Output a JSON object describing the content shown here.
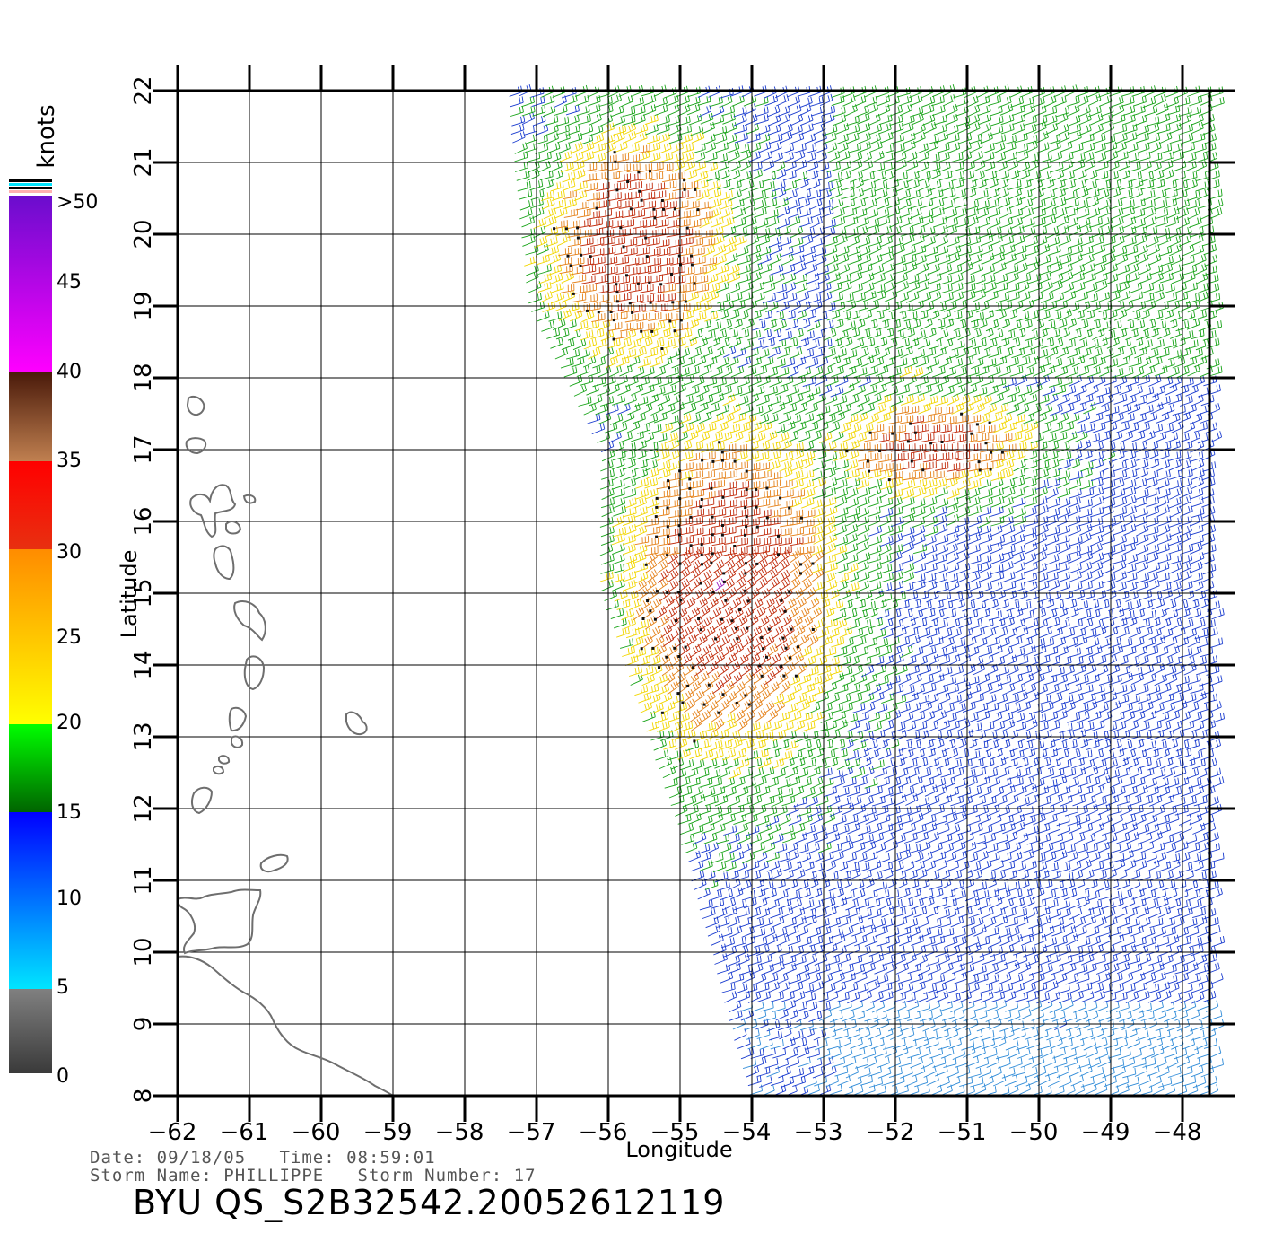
{
  "map": {
    "x_axis": {
      "label": "Longitude",
      "range": [
        -62,
        -47.6
      ],
      "ticks": [
        -62,
        -61,
        -60,
        -59,
        -58,
        -57,
        -56,
        -55,
        -54,
        -53,
        -52,
        -51,
        -50,
        -49,
        -48
      ],
      "tick_labels": [
        "−62",
        "−61",
        "−60",
        "−59",
        "−58",
        "−57",
        "−56",
        "−55",
        "−54",
        "−53",
        "−52",
        "−51",
        "−50",
        "−49",
        "−48"
      ]
    },
    "y_axis": {
      "label": "Latitude",
      "range": [
        8,
        22
      ],
      "ticks": [
        8,
        9,
        10,
        11,
        12,
        13,
        14,
        15,
        16,
        17,
        18,
        19,
        20,
        21,
        22
      ],
      "tick_labels": [
        "8",
        "9",
        "10",
        "11",
        "12",
        "13",
        "14",
        "15",
        "16",
        "17",
        "18",
        "19",
        "20",
        "21",
        "22"
      ]
    },
    "grid": true,
    "colorbar": {
      "units": "knots",
      "labels": [
        "0",
        "5",
        "10",
        "15",
        "20",
        "25",
        "30",
        "35",
        "40",
        "45",
        ">50"
      ],
      "colors": {
        "gray": "#808080",
        "cyan": "#00e5ff",
        "blue": "#0000ff",
        "dkgreen": "#006400",
        "green": "#00ff00",
        "yellow": "#ffff00",
        "orange": "#ff8c00",
        "red": "#ff0000",
        "brown": "#c08050",
        "magenta": "#ff00ff",
        "purple": "#6a0dcd"
      }
    },
    "wind_colors": {
      "blue": "#1a3ccf",
      "ltblue": "#2f8bd8",
      "green": "#17a317",
      "yellow": "#f2d600",
      "orange": "#e5821a",
      "red": "#c02a0a",
      "magenta": "#a020c0"
    },
    "landmass_color": "#6e6e6e"
  },
  "footer": {
    "line1": "Date: 09/18/05   Time: 08:59:01",
    "line2": "Storm Name: PHILLIPPE   Storm Number: 17",
    "product": "BYU QS_S2B32542.20052612119"
  }
}
